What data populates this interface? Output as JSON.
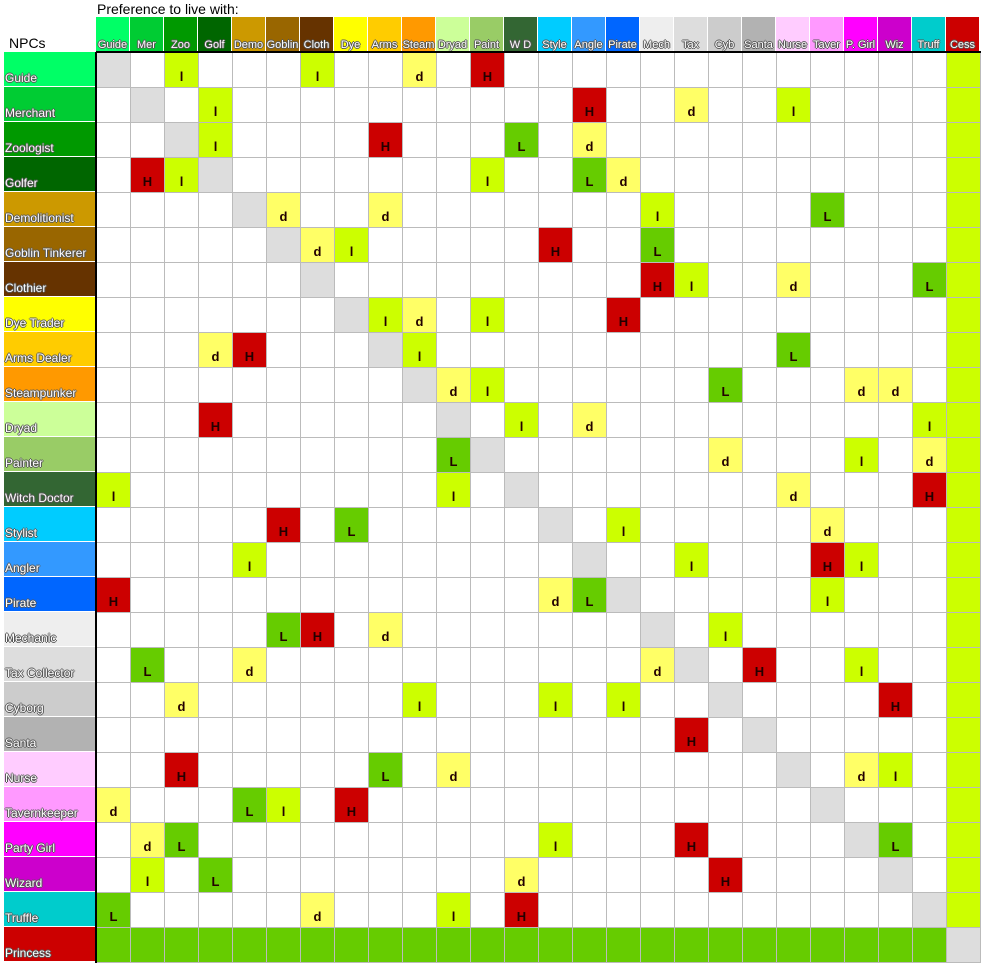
{
  "title": "Preference to live with:",
  "row_header": "NPCs",
  "legend_colors": {
    "H": "#cc0000",
    "L": "#66cc00",
    "l": "#ccff00",
    "d": "#ffff66",
    "self": "#dddddd",
    "empty": "#ffffff"
  },
  "princess_row_fill": "#66cc00",
  "cess_column_fill": "#ccff00",
  "columns": [
    {
      "label": "Guide",
      "color": "#00ff66"
    },
    {
      "label": "Mer",
      "color": "#00cc33"
    },
    {
      "label": "Zoo",
      "color": "#009900"
    },
    {
      "label": "Golf",
      "color": "#006600"
    },
    {
      "label": "Demo",
      "color": "#cc9900"
    },
    {
      "label": "Goblin",
      "color": "#996600"
    },
    {
      "label": "Cloth",
      "color": "#663300"
    },
    {
      "label": "Dye",
      "color": "#ffff00"
    },
    {
      "label": "Arms",
      "color": "#ffcc00"
    },
    {
      "label": "Steam",
      "color": "#ff9900"
    },
    {
      "label": "Dryad",
      "color": "#ccff99"
    },
    {
      "label": "Paint",
      "color": "#99cc66"
    },
    {
      "label": "W D",
      "color": "#336633"
    },
    {
      "label": "Style",
      "color": "#00ccff"
    },
    {
      "label": "Angle",
      "color": "#3399ff"
    },
    {
      "label": "Pirate",
      "color": "#0066ff"
    },
    {
      "label": "Mech",
      "color": "#eeeeee"
    },
    {
      "label": "Tax",
      "color": "#dddddd"
    },
    {
      "label": "Cyb",
      "color": "#cccccc"
    },
    {
      "label": "Santa",
      "color": "#b2b2b2"
    },
    {
      "label": "Nurse",
      "color": "#ffccff"
    },
    {
      "label": "Taver",
      "color": "#ff99ff"
    },
    {
      "label": "P. Girl",
      "color": "#ff00ff"
    },
    {
      "label": "Wiz",
      "color": "#cc00cc"
    },
    {
      "label": "Truff",
      "color": "#00cccc"
    },
    {
      "label": "Cess",
      "color": "#cc0000"
    }
  ],
  "rows": [
    {
      "name": "Guide",
      "cells": {
        "2": "l",
        "6": "l",
        "9": "d",
        "11": "H"
      }
    },
    {
      "name": "Merchant",
      "cells": {
        "3": "l",
        "14": "H",
        "17": "d",
        "20": "l"
      }
    },
    {
      "name": "Zoologist",
      "cells": {
        "3": "l",
        "8": "H",
        "12": "L",
        "14": "d"
      }
    },
    {
      "name": "Golfer",
      "cells": {
        "1": "H",
        "2": "l",
        "11": "l",
        "14": "L",
        "15": "d"
      }
    },
    {
      "name": "Demolitionist",
      "cells": {
        "5": "d",
        "8": "d",
        "16": "l",
        "21": "L"
      }
    },
    {
      "name": "Goblin Tinkerer",
      "cells": {
        "6": "d",
        "7": "l",
        "13": "H",
        "16": "L"
      }
    },
    {
      "name": "Clothier",
      "cells": {
        "16": "H",
        "17": "l",
        "20": "d",
        "24": "L"
      }
    },
    {
      "name": "Dye Trader",
      "cells": {
        "8": "l",
        "9": "d",
        "11": "l",
        "15": "H"
      }
    },
    {
      "name": "Arms Dealer",
      "cells": {
        "3": "d",
        "4": "H",
        "9": "l",
        "20": "L"
      }
    },
    {
      "name": "Steampunker",
      "cells": {
        "10": "d",
        "11": "l",
        "18": "L",
        "22": "d",
        "23": "d"
      }
    },
    {
      "name": "Dryad",
      "cells": {
        "3": "H",
        "12": "l",
        "14": "d",
        "24": "l"
      }
    },
    {
      "name": "Painter",
      "cells": {
        "10": "L",
        "18": "d",
        "22": "l",
        "24": "d"
      }
    },
    {
      "name": "Witch Doctor",
      "cells": {
        "0": "l",
        "10": "l",
        "20": "d",
        "24": "H"
      }
    },
    {
      "name": "Stylist",
      "cells": {
        "5": "H",
        "7": "L",
        "15": "l",
        "21": "d"
      }
    },
    {
      "name": "Angler",
      "cells": {
        "4": "l",
        "17": "l",
        "21": "H",
        "22": "l"
      }
    },
    {
      "name": "Pirate",
      "cells": {
        "0": "H",
        "13": "d",
        "14": "L",
        "21": "l"
      }
    },
    {
      "name": "Mechanic",
      "cells": {
        "5": "L",
        "6": "H",
        "8": "d",
        "18": "l"
      }
    },
    {
      "name": "Tax Collector",
      "cells": {
        "1": "L",
        "4": "d",
        "16": "d",
        "19": "H",
        "22": "l"
      }
    },
    {
      "name": "Cyborg",
      "cells": {
        "2": "d",
        "9": "l",
        "13": "l",
        "15": "l",
        "23": "H"
      }
    },
    {
      "name": "Santa",
      "cells": {
        "17": "H"
      }
    },
    {
      "name": "Nurse",
      "cells": {
        "2": "H",
        "8": "L",
        "10": "d",
        "22": "d",
        "23": "l"
      }
    },
    {
      "name": "Tavernkeeper",
      "cells": {
        "0": "d",
        "4": "L",
        "5": "l",
        "7": "H"
      }
    },
    {
      "name": "Party Girl",
      "cells": {
        "1": "d",
        "2": "L",
        "13": "l",
        "17": "H",
        "23": "L"
      }
    },
    {
      "name": "Wizard",
      "cells": {
        "1": "l",
        "3": "L",
        "12": "d",
        "18": "H"
      }
    },
    {
      "name": "Truffle",
      "cells": {
        "0": "L",
        "6": "d",
        "10": "l",
        "12": "H"
      }
    },
    {
      "name": "Princess",
      "cells": {}
    }
  ]
}
